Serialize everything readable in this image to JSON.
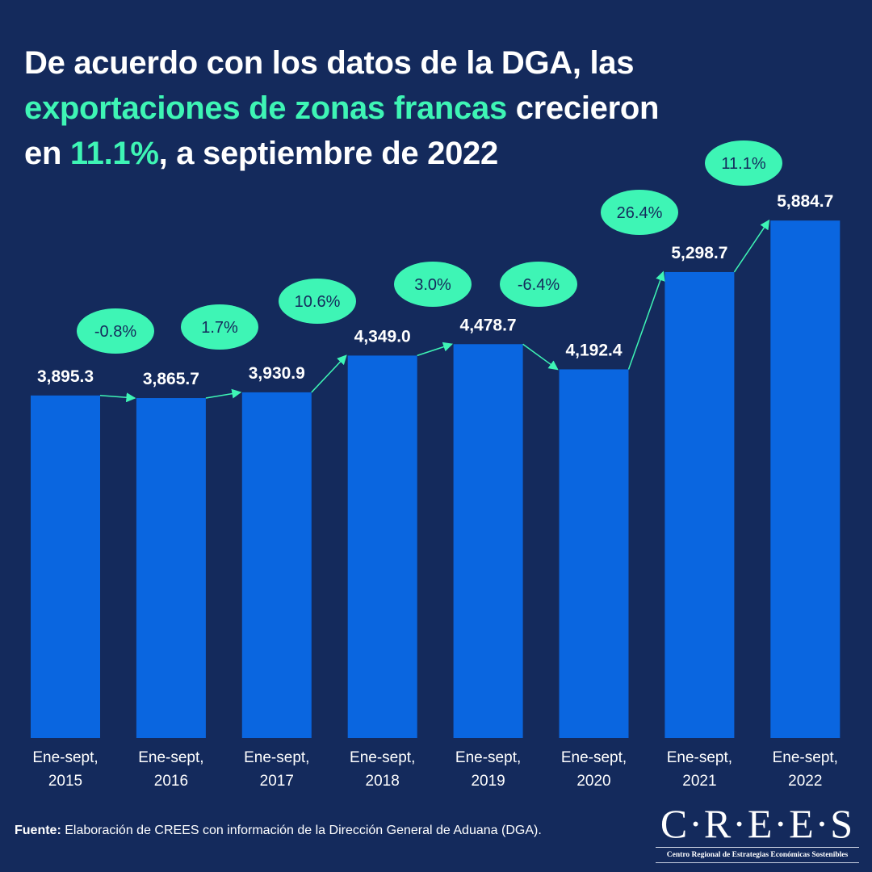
{
  "title": {
    "line1": "De acuerdo con los datos de la DGA, las",
    "highlight1": "exportaciones de zonas francas",
    "line2_rest": " crecieron",
    "line3_start": "en ",
    "highlight2": "11.1%",
    "line3_rest": ", a septiembre de 2022"
  },
  "colors": {
    "background": "#142a5c",
    "bar": "#0a66e0",
    "accent": "#3ef5b5",
    "bubble_text": "#142a5c"
  },
  "chart_data": {
    "type": "bar",
    "categories": [
      "Ene-sept, 2015",
      "Ene-sept, 2016",
      "Ene-sept, 2017",
      "Ene-sept, 2018",
      "Ene-sept, 2019",
      "Ene-sept, 2020",
      "Ene-sept, 2021",
      "Ene-sept, 2022"
    ],
    "values": [
      3895.3,
      3865.7,
      3930.9,
      4349.0,
      4478.7,
      4192.4,
      5298.7,
      5884.7
    ],
    "value_labels": [
      "3,895.3",
      "3,865.7",
      "3,930.9",
      "4,349.0",
      "4,478.7",
      "4,192.4",
      "5,298.7",
      "5,884.7"
    ],
    "growth_labels": [
      "-0.8%",
      "1.7%",
      "10.6%",
      "3.0%",
      "-6.4%",
      "26.4%",
      "11.1%"
    ],
    "grid": false,
    "legend": "none"
  },
  "source": {
    "label": "Fuente:",
    "text": " Elaboración de CREES con información de la Dirección General de Aduana (DGA)."
  },
  "logo": {
    "name": "C·R·E·E·S",
    "subtitle": "Centro Regional de Estrategias Económicas Sostenibles"
  }
}
